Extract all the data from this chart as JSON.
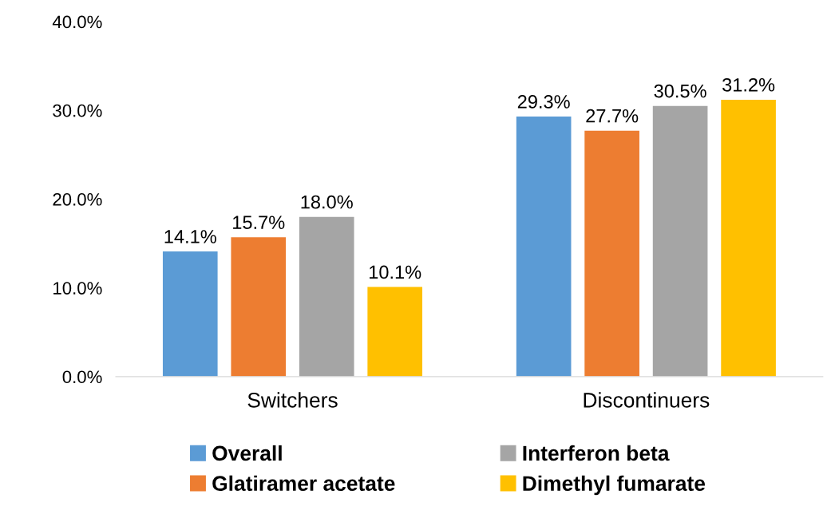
{
  "chart_data": {
    "type": "bar",
    "categories": [
      "Switchers",
      "Discontinuers"
    ],
    "series": [
      {
        "name": "Overall",
        "color": "#5b9bd5",
        "values": [
          14.1,
          29.3
        ],
        "value_labels": [
          "14.1%",
          "29.3%"
        ]
      },
      {
        "name": "Glatiramer acetate",
        "color": "#ed7d31",
        "values": [
          15.7,
          27.7
        ],
        "value_labels": [
          "15.7%",
          "27.7%"
        ]
      },
      {
        "name": "Interferon beta",
        "color": "#a5a5a5",
        "values": [
          18.0,
          30.5
        ],
        "value_labels": [
          "18.0%",
          "30.5%"
        ]
      },
      {
        "name": "Dimethyl fumarate",
        "color": "#ffc000",
        "values": [
          10.1,
          31.2
        ],
        "value_labels": [
          "10.1%",
          "31.2%"
        ]
      }
    ],
    "ylim": [
      0,
      40
    ],
    "yticks": [
      {
        "value": 0,
        "label": "0.0%"
      },
      {
        "value": 10,
        "label": "10.0%"
      },
      {
        "value": 20,
        "label": "20.0%"
      },
      {
        "value": 30,
        "label": "30.0%"
      },
      {
        "value": 40,
        "label": "40.0%"
      }
    ],
    "grid": false,
    "legend": "bottom"
  }
}
